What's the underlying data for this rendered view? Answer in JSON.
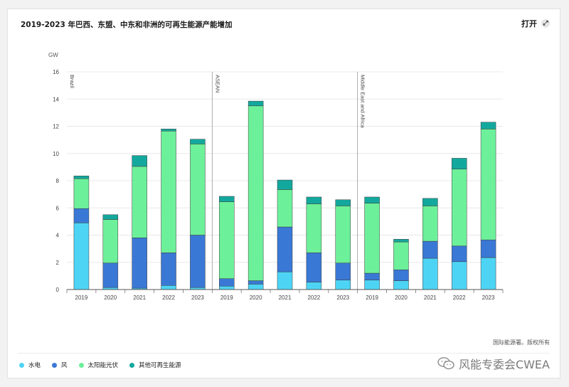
{
  "header": {
    "title": "2019-2023 年巴西、东盟、中东和非洲的可再生能源产能增加",
    "open_label": "打开"
  },
  "source": "国际能源署。版权所有",
  "watermark": "风能专委会CWEA",
  "colors": {
    "hydro": "#4dd4f5",
    "wind": "#3a78d6",
    "solar": "#6df09a",
    "other": "#13a89e"
  },
  "chart_data": {
    "type": "bar",
    "stacked": true,
    "ylabel": "GW",
    "ylim": [
      0,
      16
    ],
    "yticks": [
      0,
      2,
      4,
      6,
      8,
      10,
      12,
      14,
      16
    ],
    "grid": true,
    "legend_position": "bottom-left",
    "groups": [
      {
        "name": "Brazil",
        "categories": [
          "2019",
          "2020",
          "2021",
          "2022",
          "2023"
        ],
        "series": [
          {
            "name": "水电",
            "values": [
              4.9,
              0.15,
              0.1,
              0.3,
              0.15
            ]
          },
          {
            "name": "风",
            "values": [
              1.05,
              1.8,
              3.7,
              2.4,
              3.85
            ]
          },
          {
            "name": "太阳能光伏",
            "values": [
              2.2,
              3.2,
              5.25,
              8.95,
              6.7
            ]
          },
          {
            "name": "其他可再生能源",
            "values": [
              0.2,
              0.35,
              0.8,
              0.15,
              0.35
            ]
          }
        ]
      },
      {
        "name": "ASEAN",
        "categories": [
          "2019",
          "2020",
          "2021",
          "2022",
          "2023"
        ],
        "series": [
          {
            "name": "水电",
            "values": [
              0.25,
              0.4,
              1.3,
              0.55,
              0.7
            ]
          },
          {
            "name": "风",
            "values": [
              0.55,
              0.25,
              3.3,
              2.15,
              1.25
            ]
          },
          {
            "name": "太阳能光伏",
            "values": [
              5.65,
              12.85,
              2.75,
              3.6,
              4.2
            ]
          },
          {
            "name": "其他可再生能源",
            "values": [
              0.4,
              0.35,
              0.7,
              0.5,
              0.45
            ]
          }
        ]
      },
      {
        "name": "Middle East and Africa",
        "categories": [
          "2019",
          "2020",
          "2021",
          "2022",
          "2023"
        ],
        "series": [
          {
            "name": "水电",
            "values": [
              0.7,
              0.65,
              2.3,
              2.05,
              2.35
            ]
          },
          {
            "name": "风",
            "values": [
              0.5,
              0.8,
              1.25,
              1.15,
              1.3
            ]
          },
          {
            "name": "太阳能光伏",
            "values": [
              5.15,
              2.05,
              2.6,
              5.65,
              8.15
            ]
          },
          {
            "name": "其他可再生能源",
            "values": [
              0.45,
              0.2,
              0.55,
              0.8,
              0.5
            ]
          }
        ]
      }
    ]
  }
}
